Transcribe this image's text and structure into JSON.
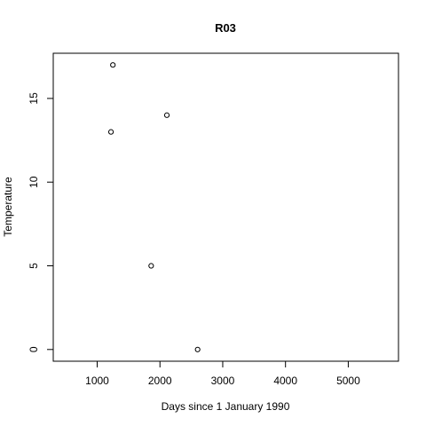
{
  "chart_data": {
    "type": "scatter",
    "title": "R03",
    "xlabel": "Days since 1 January 1990",
    "ylabel": "Temperature",
    "xlim": [
      300,
      5800
    ],
    "ylim": [
      -0.7,
      17.7
    ],
    "x_ticks": [
      1000,
      2000,
      3000,
      4000,
      5000
    ],
    "y_ticks": [
      0,
      5,
      10,
      15
    ],
    "grid": false,
    "legend": "none",
    "marker": "open-circle",
    "colors": {
      "axis": "#000000",
      "point": "#000000",
      "background": "#ffffff"
    },
    "points": [
      {
        "x": 1250,
        "y": 17
      },
      {
        "x": 1220,
        "y": 13
      },
      {
        "x": 2110,
        "y": 14
      },
      {
        "x": 1860,
        "y": 5
      },
      {
        "x": 2600,
        "y": 0
      }
    ]
  }
}
